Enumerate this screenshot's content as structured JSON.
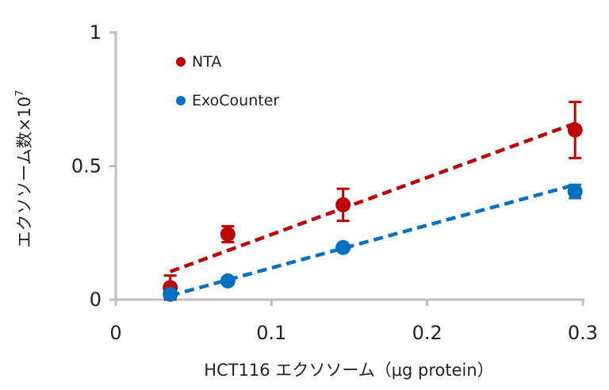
{
  "chart_data": {
    "type": "scatter",
    "xlabel": "HCT116 エクソソーム（μg protein）",
    "ylabel": "エクソソーム数×10",
    "ylabel_exponent": "7",
    "xlim": [
      0,
      0.3
    ],
    "ylim": [
      0,
      1
    ],
    "x_ticks": [
      "0",
      "0.1",
      "0.2",
      "0.3"
    ],
    "x_tick_values": [
      0,
      0.1,
      0.2,
      0.3
    ],
    "y_ticks": [
      "0",
      "0.5",
      "1"
    ],
    "y_tick_values": [
      0,
      0.5,
      1
    ],
    "grid": false,
    "legend_position": "top-left",
    "series": [
      {
        "name": "NTA",
        "color": "#c00000",
        "x": [
          0.035,
          0.072,
          0.146,
          0.295
        ],
        "y": [
          0.045,
          0.245,
          0.355,
          0.635
        ],
        "error": [
          0.045,
          0.03,
          0.06,
          0.105
        ],
        "trend": {
          "x": [
            0.035,
            0.295
          ],
          "y": [
            0.105,
            0.66
          ]
        }
      },
      {
        "name": "ExoCounter",
        "color": "#0070c0",
        "x": [
          0.035,
          0.072,
          0.146,
          0.295
        ],
        "y": [
          0.02,
          0.07,
          0.195,
          0.405
        ],
        "error": [
          0.0,
          0.0,
          0.0,
          0.025
        ],
        "trend": {
          "x": [
            0.035,
            0.295
          ],
          "y": [
            0.015,
            0.43
          ]
        }
      }
    ]
  }
}
